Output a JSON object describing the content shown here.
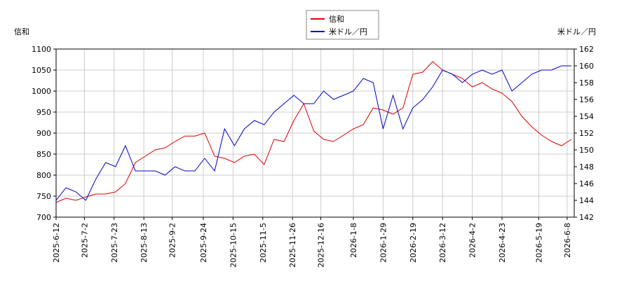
{
  "chart_data": {
    "type": "line",
    "y_label": "信和",
    "y2_label": "米ドル／円",
    "x": [
      "2025-6-12",
      "2025-6-19",
      "2025-6-26",
      "2025-7-3",
      "2025-7-10",
      "2025-7-17",
      "2025-7-24",
      "2025-7-31",
      "2025-8-7",
      "2025-8-14",
      "2025-8-21",
      "2025-8-28",
      "2025-9-4",
      "2025-9-11",
      "2025-9-18",
      "2025-9-25",
      "2025-10-2",
      "2025-10-9",
      "2025-10-16",
      "2025-10-23",
      "2025-10-30",
      "2025-11-6",
      "2025-11-13",
      "2025-11-20",
      "2025-11-27",
      "2025-12-4",
      "2025-12-11",
      "2025-12-18",
      "2025-12-25",
      "2026-1-1",
      "2026-1-8",
      "2026-1-15",
      "2026-1-22",
      "2026-1-29",
      "2026-2-5",
      "2026-2-12",
      "2026-2-19",
      "2026-2-26",
      "2026-3-5",
      "2026-3-12",
      "2026-3-19",
      "2026-3-26",
      "2026-4-2",
      "2026-4-9",
      "2026-4-16",
      "2026-4-23",
      "2026-4-30",
      "2026-5-7",
      "2026-5-14",
      "2026-5-21",
      "2026-5-28",
      "2026-6-4",
      "2026-6-11"
    ],
    "series": [
      {
        "name": "信和",
        "color": "#dd0000",
        "values": [
          735,
          745,
          740,
          748,
          755,
          755,
          760,
          780,
          830,
          845,
          860,
          865,
          880,
          893,
          893,
          900,
          845,
          840,
          830,
          845,
          850,
          825,
          885,
          880,
          930,
          970,
          905,
          885,
          880,
          895,
          910,
          920,
          960,
          955,
          945,
          960,
          1040,
          1045,
          1070,
          1050,
          1040,
          1030,
          1010,
          1020,
          1005,
          995,
          975,
          940,
          915,
          895,
          880,
          870,
          885
        ]
      },
      {
        "name": "米ドル／円",
        "color": "#0000cc",
        "axis": "y2",
        "values": [
          144.0,
          145.5,
          145.0,
          144.0,
          146.5,
          148.5,
          148.0,
          150.5,
          147.5,
          147.5,
          147.5,
          147.0,
          148.0,
          147.5,
          147.5,
          149.0,
          147.5,
          152.5,
          150.5,
          152.5,
          153.5,
          153.0,
          154.5,
          155.5,
          156.5,
          155.5,
          155.5,
          157.0,
          156.0,
          156.5,
          157.0,
          158.5,
          158.0,
          152.5,
          156.5,
          152.5,
          155.0,
          156.0,
          157.5,
          159.5,
          159.0,
          158.0,
          159.0,
          159.5,
          159.0,
          159.5,
          157.0,
          158.0,
          159.0,
          159.5,
          159.5,
          160.0,
          160.0
        ]
      }
    ],
    "xlim": [
      "2025-6-12",
      "2026-6-13"
    ],
    "xticks": [
      "2025-6-12",
      "2025-7-2",
      "2025-7-23",
      "2025-8-13",
      "2025-9-2",
      "2025-9-24",
      "2025-10-15",
      "2025-11-5",
      "2025-11-26",
      "2025-12-16",
      "2026-1-8",
      "2026-1-29",
      "2026-2-19",
      "2026-3-12",
      "2026-4-2",
      "2026-4-23",
      "2026-5-19",
      "2026-6-8"
    ],
    "ylim": [
      700,
      1100
    ],
    "yticks": [
      700,
      750,
      800,
      850,
      900,
      950,
      1000,
      1050,
      1100
    ],
    "y2lim": [
      142,
      162
    ],
    "y2ticks": [
      142,
      144,
      146,
      148,
      150,
      152,
      154,
      156,
      158,
      160,
      162
    ],
    "grid": true,
    "legend": "top"
  }
}
